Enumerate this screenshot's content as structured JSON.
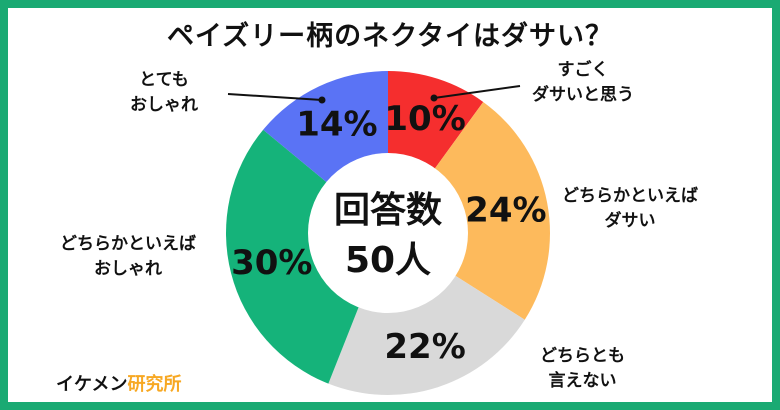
{
  "chart_data": {
    "type": "pie",
    "title": "ペイズリー柄のネクタイはダサい？",
    "center_label": [
      "回答数",
      "50人"
    ],
    "slices": [
      {
        "label": [
          "すごく",
          "ダサいと思う"
        ],
        "value": 10,
        "display": "10%",
        "color": "#f52e2e"
      },
      {
        "label": [
          "どちらかといえば",
          "ダサい"
        ],
        "value": 24,
        "display": "24%",
        "color": "#fdba5c"
      },
      {
        "label": [
          "どちらとも",
          "言えない"
        ],
        "value": 22,
        "display": "22%",
        "color": "#d9d9d9"
      },
      {
        "label": [
          "どちらかといえば",
          "おしゃれ"
        ],
        "value": 30,
        "display": "30%",
        "color": "#15b37a"
      },
      {
        "label": [
          "とても",
          "おしゃれ"
        ],
        "value": 14,
        "display": "14%",
        "color": "#5a73f5"
      }
    ]
  },
  "brand": {
    "part1": "イケメン",
    "part2": "研究所"
  },
  "colors": {
    "frame": "#1aaa73",
    "brand_accent": "#f7a823"
  }
}
